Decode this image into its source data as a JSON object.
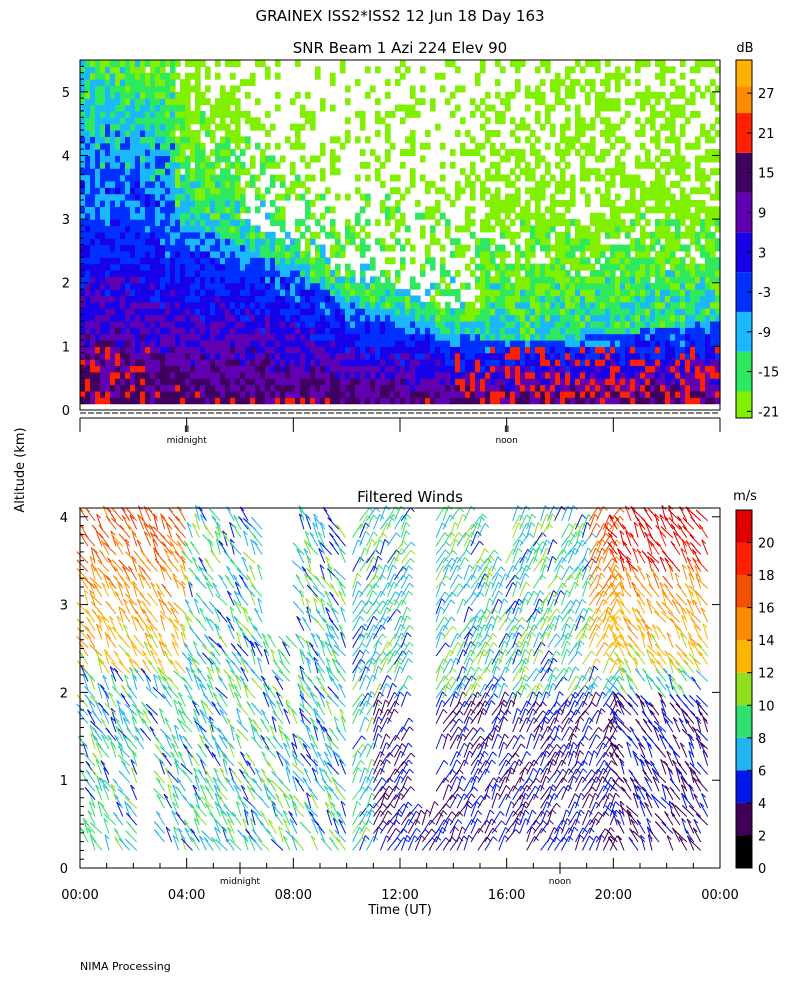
{
  "header": {
    "line1": "GRAINEX ISS2*ISS2  12 Jun 18 Day 163",
    "line2": "SNR Beam 1 Azi 224 Elev 90"
  },
  "shared": {
    "ylabel": "Altitude (km)",
    "xlabel": "Time (UT)",
    "footer": "NIMA Processing",
    "midnight_label": "midnight",
    "noon_label": "noon",
    "marker_glyph": "II"
  },
  "chart_data": [
    {
      "type": "heatmap",
      "title": "SNR Beam 1 Azi 224 Elev 90",
      "x_unit": "hours UT",
      "x_range": [
        0,
        24
      ],
      "y_ticks": [
        "0",
        "1",
        "2",
        "3",
        "4",
        "5"
      ],
      "ylim": [
        0,
        5.5
      ],
      "x_tick_labels": [],
      "day_markers": [
        {
          "label": "midnight",
          "x": 4.0
        },
        {
          "label": "noon",
          "x": 16.0
        }
      ],
      "colorbar": {
        "title": "dB",
        "ticks": [
          "-21",
          "-15",
          "-9",
          "-3",
          "3",
          "9",
          "15",
          "21",
          "27"
        ],
        "tick_values": [
          -21,
          -15,
          -9,
          -3,
          3,
          9,
          15,
          21,
          27
        ],
        "range": [
          -22,
          32
        ],
        "bins": [
          {
            "lo": -22,
            "hi": -18,
            "color": "#80f000"
          },
          {
            "lo": -18,
            "hi": -12,
            "color": "#2ee860"
          },
          {
            "lo": -12,
            "hi": -6,
            "color": "#1cb8ff"
          },
          {
            "lo": -6,
            "hi": 0,
            "color": "#0030ff"
          },
          {
            "lo": 0,
            "hi": 6,
            "color": "#1800e8"
          },
          {
            "lo": 6,
            "hi": 12,
            "color": "#6000b0"
          },
          {
            "lo": 12,
            "hi": 18,
            "color": "#400060"
          },
          {
            "lo": 18,
            "hi": 24,
            "color": "#ff2000"
          },
          {
            "lo": 24,
            "hi": 28,
            "color": "#ff8c00"
          },
          {
            "lo": 28,
            "hi": 32,
            "color": "#ffb000"
          }
        ]
      },
      "boundary_layer_top_km": [
        {
          "x": 0,
          "y": 3.5
        },
        {
          "x": 2,
          "y": 3.3
        },
        {
          "x": 3,
          "y": 3.1
        },
        {
          "x": 4,
          "y": 2.9
        },
        {
          "x": 6,
          "y": 2.6
        },
        {
          "x": 8,
          "y": 2.2
        },
        {
          "x": 10,
          "y": 1.7
        },
        {
          "x": 12,
          "y": 1.4
        },
        {
          "x": 14,
          "y": 1.2
        },
        {
          "x": 16,
          "y": 1.1
        },
        {
          "x": 18,
          "y": 1.1
        },
        {
          "x": 20,
          "y": 1.2
        },
        {
          "x": 22,
          "y": 1.3
        },
        {
          "x": 24,
          "y": 1.4
        }
      ],
      "grid": false
    },
    {
      "type": "barbs",
      "title": "Filtered Winds",
      "x_range": [
        0,
        24
      ],
      "x_ticks": [
        0,
        4,
        8,
        12,
        16,
        20,
        24
      ],
      "x_tick_labels": [
        "00:00",
        "04:00",
        "08:00",
        "12:00",
        "16:00",
        "20:00",
        "00:00"
      ],
      "y_ticks": [
        "0",
        "1",
        "2",
        "3",
        "4"
      ],
      "ylim": [
        0,
        4.1
      ],
      "xlabel": "Time (UT)",
      "day_markers": [
        {
          "label": "midnight",
          "x": 6.0
        },
        {
          "label": "noon",
          "x": 18.0
        }
      ],
      "colorbar": {
        "title": "m/s",
        "ticks": [
          "0",
          "2",
          "4",
          "6",
          "8",
          "10",
          "12",
          "14",
          "16",
          "18",
          "20"
        ],
        "tick_values": [
          0,
          2,
          4,
          6,
          8,
          10,
          12,
          14,
          16,
          18,
          20
        ],
        "range": [
          0,
          22
        ],
        "bins": [
          {
            "lo": 0,
            "hi": 2,
            "color": "#000000"
          },
          {
            "lo": 2,
            "hi": 4,
            "color": "#40005a"
          },
          {
            "lo": 4,
            "hi": 6,
            "color": "#0018e8"
          },
          {
            "lo": 6,
            "hi": 8,
            "color": "#20b4f0"
          },
          {
            "lo": 8,
            "hi": 10,
            "color": "#30e070"
          },
          {
            "lo": 10,
            "hi": 12,
            "color": "#90e020"
          },
          {
            "lo": 12,
            "hi": 14,
            "color": "#ffb400"
          },
          {
            "lo": 14,
            "hi": 16,
            "color": "#ff8c00"
          },
          {
            "lo": 16,
            "hi": 18,
            "color": "#f05000"
          },
          {
            "lo": 18,
            "hi": 20,
            "color": "#ff2000"
          },
          {
            "lo": 20,
            "hi": 22,
            "color": "#e00000"
          }
        ]
      },
      "grid": false
    }
  ]
}
